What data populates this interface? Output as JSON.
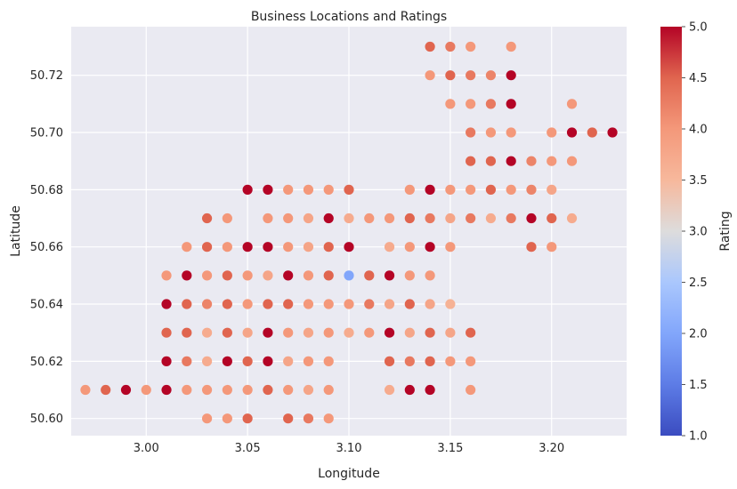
{
  "chart_data": {
    "type": "scatter",
    "title": "Business Locations and Ratings",
    "xlabel": "Longitude",
    "ylabel": "Latitude",
    "xlim": [
      2.963,
      3.237
    ],
    "ylim": [
      50.594,
      50.737
    ],
    "xticks": [
      3.0,
      3.05,
      3.1,
      3.15,
      3.2
    ],
    "xtick_labels": [
      "3.00",
      "3.05",
      "3.10",
      "3.15",
      "3.20"
    ],
    "yticks": [
      50.6,
      50.62,
      50.64,
      50.66,
      50.68,
      50.7,
      50.72
    ],
    "ytick_labels": [
      "50.60",
      "50.62",
      "50.64",
      "50.66",
      "50.68",
      "50.70",
      "50.72"
    ],
    "colorbar": {
      "label": "Rating",
      "range": [
        1.0,
        5.0
      ],
      "colormap": "coolwarm",
      "ticks": [
        1.0,
        1.5,
        2.0,
        2.5,
        3.0,
        3.5,
        4.0,
        4.5,
        5.0
      ],
      "tick_labels": [
        "1.0",
        "1.5",
        "2.0",
        "2.5",
        "3.0",
        "3.5",
        "4.0",
        "4.5",
        "5.0"
      ]
    },
    "grid": true,
    "points": [
      [
        3.14,
        50.73,
        4.5
      ],
      [
        3.15,
        50.73,
        4.3
      ],
      [
        3.16,
        50.73,
        4.0
      ],
      [
        3.18,
        50.73,
        4.0
      ],
      [
        3.14,
        50.72,
        4.0
      ],
      [
        3.15,
        50.72,
        4.5
      ],
      [
        3.16,
        50.72,
        4.3
      ],
      [
        3.17,
        50.72,
        4.2
      ],
      [
        3.18,
        50.72,
        5.0
      ],
      [
        3.15,
        50.71,
        4.0
      ],
      [
        3.16,
        50.71,
        4.0
      ],
      [
        3.17,
        50.71,
        4.3
      ],
      [
        3.18,
        50.71,
        5.0
      ],
      [
        3.21,
        50.71,
        4.0
      ],
      [
        3.16,
        50.7,
        4.3
      ],
      [
        3.17,
        50.7,
        4.0
      ],
      [
        3.18,
        50.7,
        4.0
      ],
      [
        3.2,
        50.7,
        4.0
      ],
      [
        3.21,
        50.7,
        5.0
      ],
      [
        3.22,
        50.7,
        4.5
      ],
      [
        3.23,
        50.7,
        5.0
      ],
      [
        3.16,
        50.69,
        4.5
      ],
      [
        3.17,
        50.69,
        4.5
      ],
      [
        3.18,
        50.69,
        5.0
      ],
      [
        3.19,
        50.69,
        4.2
      ],
      [
        3.2,
        50.69,
        4.0
      ],
      [
        3.21,
        50.69,
        4.0
      ],
      [
        3.05,
        50.68,
        5.0
      ],
      [
        3.06,
        50.68,
        5.0
      ],
      [
        3.07,
        50.68,
        4.0
      ],
      [
        3.08,
        50.68,
        4.0
      ],
      [
        3.09,
        50.68,
        4.0
      ],
      [
        3.1,
        50.68,
        4.5
      ],
      [
        3.13,
        50.68,
        4.0
      ],
      [
        3.14,
        50.68,
        5.0
      ],
      [
        3.15,
        50.68,
        4.0
      ],
      [
        3.16,
        50.68,
        4.0
      ],
      [
        3.17,
        50.68,
        4.5
      ],
      [
        3.18,
        50.68,
        4.0
      ],
      [
        3.19,
        50.68,
        4.2
      ],
      [
        3.2,
        50.68,
        3.8
      ],
      [
        3.03,
        50.67,
        4.5
      ],
      [
        3.04,
        50.67,
        4.0
      ],
      [
        3.06,
        50.67,
        4.0
      ],
      [
        3.07,
        50.67,
        4.0
      ],
      [
        3.08,
        50.67,
        3.8
      ],
      [
        3.09,
        50.67,
        5.0
      ],
      [
        3.1,
        50.67,
        3.7
      ],
      [
        3.11,
        50.67,
        4.0
      ],
      [
        3.12,
        50.67,
        4.0
      ],
      [
        3.13,
        50.67,
        4.5
      ],
      [
        3.14,
        50.67,
        4.3
      ],
      [
        3.15,
        50.67,
        3.8
      ],
      [
        3.16,
        50.67,
        4.3
      ],
      [
        3.17,
        50.67,
        3.7
      ],
      [
        3.18,
        50.67,
        4.3
      ],
      [
        3.19,
        50.67,
        5.0
      ],
      [
        3.2,
        50.67,
        4.5
      ],
      [
        3.21,
        50.67,
        3.7
      ],
      [
        3.02,
        50.66,
        4.0
      ],
      [
        3.03,
        50.66,
        4.5
      ],
      [
        3.04,
        50.66,
        4.0
      ],
      [
        3.05,
        50.66,
        5.0
      ],
      [
        3.06,
        50.66,
        5.0
      ],
      [
        3.07,
        50.66,
        4.0
      ],
      [
        3.08,
        50.66,
        3.8
      ],
      [
        3.09,
        50.66,
        4.5
      ],
      [
        3.1,
        50.66,
        5.0
      ],
      [
        3.12,
        50.66,
        3.7
      ],
      [
        3.13,
        50.66,
        4.0
      ],
      [
        3.14,
        50.66,
        5.0
      ],
      [
        3.15,
        50.66,
        4.0
      ],
      [
        3.19,
        50.66,
        4.5
      ],
      [
        3.2,
        50.66,
        4.0
      ],
      [
        3.01,
        50.65,
        4.0
      ],
      [
        3.02,
        50.65,
        5.0
      ],
      [
        3.03,
        50.65,
        4.0
      ],
      [
        3.04,
        50.65,
        4.5
      ],
      [
        3.05,
        50.65,
        4.0
      ],
      [
        3.06,
        50.65,
        3.8
      ],
      [
        3.07,
        50.65,
        5.0
      ],
      [
        3.08,
        50.65,
        4.0
      ],
      [
        3.09,
        50.65,
        4.5
      ],
      [
        3.1,
        50.65,
        2.0
      ],
      [
        3.11,
        50.65,
        4.5
      ],
      [
        3.12,
        50.65,
        5.0
      ],
      [
        3.13,
        50.65,
        4.0
      ],
      [
        3.14,
        50.65,
        4.0
      ],
      [
        3.01,
        50.64,
        5.0
      ],
      [
        3.02,
        50.64,
        4.5
      ],
      [
        3.03,
        50.64,
        4.2
      ],
      [
        3.04,
        50.64,
        4.5
      ],
      [
        3.05,
        50.64,
        4.0
      ],
      [
        3.06,
        50.64,
        4.5
      ],
      [
        3.07,
        50.64,
        4.5
      ],
      [
        3.08,
        50.64,
        4.0
      ],
      [
        3.09,
        50.64,
        4.0
      ],
      [
        3.1,
        50.64,
        4.0
      ],
      [
        3.11,
        50.64,
        4.3
      ],
      [
        3.12,
        50.64,
        3.8
      ],
      [
        3.13,
        50.64,
        4.5
      ],
      [
        3.14,
        50.64,
        3.8
      ],
      [
        3.15,
        50.64,
        3.6
      ],
      [
        3.01,
        50.63,
        4.5
      ],
      [
        3.02,
        50.63,
        4.5
      ],
      [
        3.03,
        50.63,
        3.7
      ],
      [
        3.04,
        50.63,
        4.5
      ],
      [
        3.05,
        50.63,
        3.8
      ],
      [
        3.06,
        50.63,
        5.0
      ],
      [
        3.07,
        50.63,
        4.0
      ],
      [
        3.08,
        50.63,
        3.8
      ],
      [
        3.09,
        50.63,
        4.0
      ],
      [
        3.1,
        50.63,
        3.7
      ],
      [
        3.11,
        50.63,
        4.0
      ],
      [
        3.12,
        50.63,
        5.0
      ],
      [
        3.13,
        50.63,
        3.8
      ],
      [
        3.14,
        50.63,
        4.5
      ],
      [
        3.15,
        50.63,
        3.8
      ],
      [
        3.16,
        50.63,
        4.5
      ],
      [
        3.01,
        50.62,
        5.0
      ],
      [
        3.02,
        50.62,
        4.3
      ],
      [
        3.03,
        50.62,
        3.7
      ],
      [
        3.04,
        50.62,
        5.0
      ],
      [
        3.05,
        50.62,
        4.5
      ],
      [
        3.06,
        50.62,
        5.0
      ],
      [
        3.07,
        50.62,
        3.8
      ],
      [
        3.08,
        50.62,
        4.0
      ],
      [
        3.09,
        50.62,
        4.0
      ],
      [
        3.12,
        50.62,
        4.5
      ],
      [
        3.13,
        50.62,
        4.3
      ],
      [
        3.14,
        50.62,
        4.5
      ],
      [
        3.15,
        50.62,
        4.0
      ],
      [
        3.16,
        50.62,
        4.0
      ],
      [
        2.97,
        50.61,
        4.0
      ],
      [
        2.98,
        50.61,
        4.5
      ],
      [
        2.99,
        50.61,
        5.0
      ],
      [
        3.0,
        50.61,
        4.0
      ],
      [
        3.01,
        50.61,
        5.0
      ],
      [
        3.02,
        50.61,
        4.0
      ],
      [
        3.03,
        50.61,
        4.0
      ],
      [
        3.04,
        50.61,
        4.0
      ],
      [
        3.05,
        50.61,
        4.0
      ],
      [
        3.06,
        50.61,
        4.5
      ],
      [
        3.07,
        50.61,
        4.0
      ],
      [
        3.08,
        50.61,
        3.8
      ],
      [
        3.09,
        50.61,
        4.0
      ],
      [
        3.12,
        50.61,
        3.7
      ],
      [
        3.13,
        50.61,
        5.0
      ],
      [
        3.14,
        50.61,
        5.0
      ],
      [
        3.16,
        50.61,
        4.0
      ],
      [
        3.03,
        50.6,
        4.0
      ],
      [
        3.04,
        50.6,
        4.0
      ],
      [
        3.05,
        50.6,
        4.5
      ],
      [
        3.07,
        50.6,
        4.5
      ],
      [
        3.08,
        50.6,
        4.3
      ],
      [
        3.09,
        50.6,
        4.0
      ]
    ]
  }
}
